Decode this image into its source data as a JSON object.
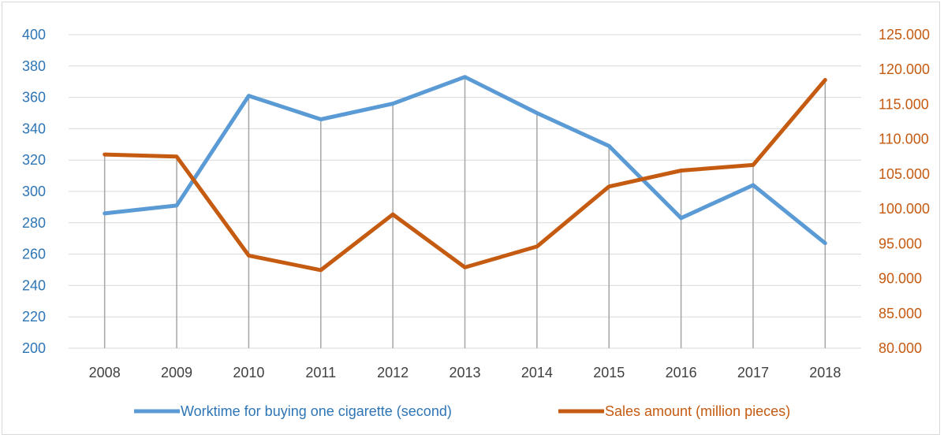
{
  "chart_data": {
    "type": "line",
    "title": "",
    "categories": [
      "2008",
      "2009",
      "2010",
      "2011",
      "2012",
      "2013",
      "2014",
      "2015",
      "2016",
      "2017",
      "2018"
    ],
    "series": [
      {
        "name": "Worktime for buying one cigarette (second)",
        "axis": "left",
        "color": "#5b9bd5",
        "values": [
          286,
          291,
          361,
          346,
          356,
          373,
          350,
          329,
          283,
          304,
          267
        ]
      },
      {
        "name": "Sales amount (million pieces)",
        "axis": "right",
        "color": "#c55a11",
        "values": [
          107.8,
          107.5,
          93.3,
          91.2,
          99.2,
          91.6,
          94.6,
          103.2,
          105.5,
          106.3,
          118.5
        ]
      }
    ],
    "y_left": {
      "ylim": [
        200,
        400
      ],
      "ticks": [
        "200",
        "220",
        "240",
        "260",
        "280",
        "300",
        "320",
        "340",
        "360",
        "380",
        "400"
      ],
      "color": "#2e75b6"
    },
    "y_right": {
      "ylim": [
        80,
        125
      ],
      "ticks": [
        "80.000",
        "85.000",
        "90.000",
        "95.000",
        "100.000",
        "105.000",
        "110.000",
        "115.000",
        "120.000",
        "125.000"
      ],
      "color": "#c55a11"
    },
    "grid": true,
    "legend": "bottom"
  }
}
